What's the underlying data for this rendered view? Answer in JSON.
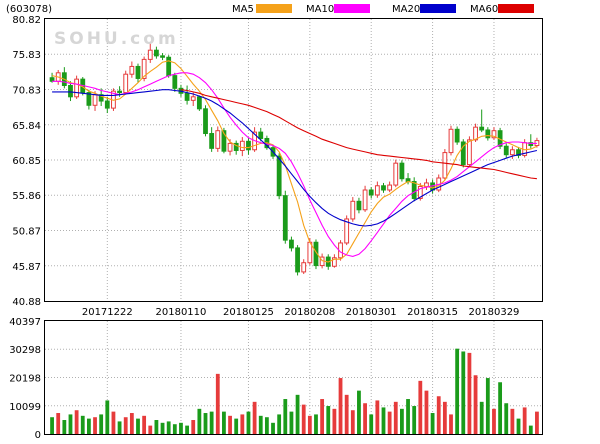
{
  "chart_data": [
    {
      "type": "candlestick",
      "code": "(603078)",
      "watermark": "SOHU.com",
      "legend": [
        {
          "label": "MA5",
          "color": "#f5a21a"
        },
        {
          "label": "MA10",
          "color": "#ff00ff"
        },
        {
          "label": "MA20",
          "color": "#0000cc"
        },
        {
          "label": "MA60",
          "color": "#dd0000"
        }
      ],
      "colors": {
        "up": "#e63b3b",
        "down": "#1a9b1a",
        "grid": "#b0b0b0"
      },
      "y_ticks": [
        "80.82",
        "75.83",
        "70.83",
        "65.84",
        "60.85",
        "55.86",
        "50.87",
        "45.87",
        "40.88"
      ],
      "ylim": [
        40.88,
        80.82
      ],
      "x_ticks": [
        {
          "label": "20171222",
          "index": 9
        },
        {
          "label": "20180110",
          "index": 21
        },
        {
          "label": "20180125",
          "index": 32
        },
        {
          "label": "20180208",
          "index": 42
        },
        {
          "label": "20180301",
          "index": 52
        },
        {
          "label": "20180315",
          "index": 62
        },
        {
          "label": "20180329",
          "index": 72
        }
      ],
      "candles": [
        [
          72.5,
          73.2,
          71.8,
          72.0
        ],
        [
          72.0,
          73.6,
          71.5,
          73.2
        ],
        [
          73.2,
          74.0,
          71.0,
          71.4
        ],
        [
          71.4,
          72.0,
          69.2,
          69.8
        ],
        [
          69.8,
          72.8,
          69.5,
          72.3
        ],
        [
          72.3,
          72.6,
          70.0,
          70.4
        ],
        [
          70.4,
          70.8,
          68.0,
          68.6
        ],
        [
          68.6,
          70.6,
          67.8,
          70.1
        ],
        [
          70.1,
          71.0,
          68.5,
          69.2
        ],
        [
          69.2,
          69.8,
          67.5,
          68.2
        ],
        [
          68.2,
          71.0,
          67.8,
          70.6
        ],
        [
          70.6,
          71.3,
          69.8,
          70.4
        ],
        [
          70.4,
          73.5,
          70.1,
          73.0
        ],
        [
          73.0,
          74.8,
          72.5,
          74.1
        ],
        [
          74.1,
          74.5,
          71.8,
          72.4
        ],
        [
          72.4,
          75.5,
          72.0,
          75.1
        ],
        [
          75.1,
          77.3,
          74.6,
          76.4
        ],
        [
          76.4,
          76.9,
          75.2,
          75.6
        ],
        [
          75.6,
          76.0,
          75.0,
          75.4
        ],
        [
          75.4,
          75.7,
          72.5,
          72.8
        ],
        [
          72.8,
          73.2,
          70.5,
          71.0
        ],
        [
          71.0,
          71.5,
          69.8,
          70.3
        ],
        [
          70.3,
          71.4,
          68.7,
          69.3
        ],
        [
          69.3,
          70.4,
          68.5,
          69.8
        ],
        [
          69.8,
          70.0,
          67.8,
          68.1
        ],
        [
          68.1,
          68.6,
          64.2,
          64.6
        ],
        [
          64.6,
          65.5,
          62.0,
          62.5
        ],
        [
          62.5,
          65.6,
          62.0,
          65.0
        ],
        [
          65.0,
          65.4,
          61.8,
          62.1
        ],
        [
          62.1,
          63.8,
          61.5,
          63.2
        ],
        [
          63.2,
          63.6,
          61.6,
          62.2
        ],
        [
          62.2,
          64.1,
          61.4,
          63.5
        ],
        [
          63.5,
          64.0,
          61.6,
          62.3
        ],
        [
          62.3,
          65.5,
          62.0,
          64.8
        ],
        [
          64.8,
          65.4,
          63.5,
          63.9
        ],
        [
          63.9,
          64.3,
          62.3,
          62.6
        ],
        [
          62.6,
          63.0,
          61.0,
          61.4
        ],
        [
          61.4,
          61.8,
          55.3,
          55.8
        ],
        [
          55.8,
          56.5,
          49.0,
          49.5
        ],
        [
          49.5,
          50.0,
          47.9,
          48.4
        ],
        [
          48.4,
          48.8,
          44.5,
          45.0
        ],
        [
          45.0,
          46.8,
          44.7,
          46.3
        ],
        [
          46.3,
          49.8,
          46.0,
          49.2
        ],
        [
          49.2,
          49.6,
          45.4,
          45.9
        ],
        [
          45.9,
          47.6,
          45.5,
          47.1
        ],
        [
          47.1,
          47.5,
          45.3,
          45.8
        ],
        [
          45.8,
          47.5,
          45.6,
          47.0
        ],
        [
          47.0,
          49.5,
          46.6,
          49.1
        ],
        [
          49.1,
          53.0,
          48.8,
          52.5
        ],
        [
          52.5,
          55.6,
          52.1,
          55.0
        ],
        [
          55.0,
          55.5,
          53.3,
          53.8
        ],
        [
          53.8,
          57.2,
          53.5,
          56.6
        ],
        [
          56.6,
          57.0,
          55.4,
          55.9
        ],
        [
          55.9,
          57.8,
          55.5,
          57.2
        ],
        [
          57.2,
          57.6,
          56.2,
          56.6
        ],
        [
          56.6,
          57.8,
          56.3,
          57.3
        ],
        [
          57.3,
          60.9,
          57.0,
          60.4
        ],
        [
          60.4,
          60.8,
          57.8,
          58.2
        ],
        [
          58.2,
          59.0,
          57.4,
          57.8
        ],
        [
          57.8,
          58.4,
          55.0,
          55.4
        ],
        [
          55.4,
          57.6,
          55.1,
          57.1
        ],
        [
          57.1,
          58.2,
          56.6,
          57.6
        ],
        [
          57.6,
          58.1,
          56.1,
          56.6
        ],
        [
          56.6,
          58.8,
          56.3,
          58.3
        ],
        [
          58.3,
          62.4,
          58.0,
          61.9
        ],
        [
          61.9,
          65.7,
          61.5,
          65.2
        ],
        [
          65.2,
          65.6,
          63.0,
          63.4
        ],
        [
          63.4,
          63.8,
          59.8,
          60.2
        ],
        [
          60.2,
          64.2,
          59.9,
          63.7
        ],
        [
          63.7,
          66.0,
          63.4,
          65.5
        ],
        [
          65.5,
          68.0,
          64.8,
          65.1
        ],
        [
          65.1,
          65.5,
          63.6,
          64.0
        ],
        [
          64.0,
          65.5,
          63.7,
          65.0
        ],
        [
          65.0,
          65.4,
          62.4,
          62.8
        ],
        [
          62.8,
          63.2,
          61.2,
          61.6
        ],
        [
          61.6,
          62.8,
          61.0,
          62.3
        ],
        [
          62.3,
          62.7,
          61.1,
          61.5
        ],
        [
          61.5,
          63.8,
          61.2,
          63.3
        ],
        [
          63.3,
          64.5,
          62.5,
          62.9
        ],
        [
          62.9,
          64.0,
          62.6,
          63.6
        ]
      ],
      "ma5": [
        72.8,
        72.6,
        72.3,
        71.8,
        71.6,
        71.2,
        70.6,
        70.3,
        69.9,
        69.6,
        69.3,
        69.5,
        70.2,
        71.0,
        71.8,
        72.7,
        73.4,
        74.0,
        74.7,
        74.9,
        74.6,
        73.8,
        72.7,
        71.6,
        70.6,
        69.4,
        67.9,
        66.4,
        64.6,
        63.4,
        62.9,
        62.6,
        62.6,
        62.9,
        63.2,
        63.3,
        63.0,
        62.0,
        60.1,
        57.5,
        54.9,
        51.6,
        49.2,
        47.8,
        46.6,
        46.4,
        46.8,
        46.8,
        47.5,
        49.0,
        50.5,
        52.0,
        53.5,
        54.7,
        55.6,
        56.0,
        56.7,
        57.3,
        57.8,
        57.6,
        57.3,
        57.1,
        56.9,
        57.2,
        58.0,
        59.6,
        61.5,
        62.8,
        63.5,
        63.8,
        64.2,
        64.3,
        64.2,
        63.8,
        63.4,
        63.0,
        62.6,
        62.3,
        62.4,
        62.8
      ],
      "ma10": [
        72.0,
        72.0,
        71.9,
        71.7,
        71.6,
        71.4,
        71.2,
        71.0,
        70.7,
        70.5,
        70.3,
        70.1,
        70.3,
        70.5,
        70.8,
        71.2,
        71.6,
        72.0,
        72.4,
        72.8,
        73.0,
        73.2,
        73.2,
        73.0,
        72.5,
        71.8,
        70.8,
        69.6,
        68.2,
        66.9,
        65.8,
        64.8,
        64.0,
        63.6,
        63.3,
        63.1,
        62.9,
        62.5,
        61.8,
        60.6,
        59.0,
        57.2,
        55.2,
        53.4,
        51.6,
        50.0,
        48.8,
        47.8,
        47.4,
        47.2,
        47.5,
        48.3,
        49.4,
        50.6,
        51.8,
        53.0,
        54.0,
        55.0,
        55.8,
        56.3,
        56.8,
        57.0,
        57.2,
        57.4,
        57.6,
        58.0,
        58.5,
        59.2,
        59.9,
        60.6,
        61.3,
        62.0,
        62.6,
        63.0,
        63.3,
        63.4,
        63.4,
        63.3,
        63.2,
        63.2
      ],
      "ma20": [
        70.5,
        70.5,
        70.5,
        70.5,
        70.4,
        70.3,
        70.2,
        70.1,
        70.0,
        70.0,
        70.0,
        70.1,
        70.2,
        70.3,
        70.4,
        70.5,
        70.6,
        70.7,
        70.8,
        70.8,
        70.7,
        70.6,
        70.4,
        70.2,
        69.9,
        69.6,
        69.2,
        68.7,
        68.1,
        67.5,
        66.8,
        66.1,
        65.3,
        64.5,
        63.7,
        62.9,
        62.0,
        61.0,
        60.0,
        58.9,
        57.8,
        56.7,
        55.7,
        54.8,
        54.0,
        53.3,
        52.8,
        52.4,
        52.1,
        51.8,
        51.6,
        51.5,
        51.6,
        51.8,
        52.2,
        52.7,
        53.3,
        53.9,
        54.5,
        55.1,
        55.6,
        56.1,
        56.6,
        57.0,
        57.4,
        57.8,
        58.2,
        58.6,
        59.0,
        59.4,
        59.8,
        60.2,
        60.5,
        60.8,
        61.1,
        61.4,
        61.6,
        61.8,
        62.0,
        62.2
      ],
      "ma60": [
        null,
        null,
        null,
        null,
        null,
        null,
        null,
        null,
        null,
        null,
        null,
        null,
        null,
        null,
        null,
        null,
        null,
        null,
        null,
        null,
        null,
        70.8,
        70.7,
        70.5,
        70.3,
        70.0,
        69.8,
        69.6,
        69.4,
        69.2,
        69.0,
        68.8,
        68.6,
        68.3,
        68.0,
        67.7,
        67.3,
        66.9,
        66.4,
        65.9,
        65.4,
        65.0,
        64.6,
        64.2,
        63.8,
        63.5,
        63.2,
        62.9,
        62.6,
        62.4,
        62.2,
        62.0,
        61.8,
        61.6,
        61.5,
        61.4,
        61.3,
        61.2,
        61.1,
        61.0,
        60.9,
        60.8,
        60.6,
        60.5,
        60.4,
        60.3,
        60.2,
        60.0,
        59.9,
        59.8,
        59.7,
        59.6,
        59.5,
        59.3,
        59.1,
        58.9,
        58.7,
        58.5,
        58.3,
        58.2
      ]
    },
    {
      "type": "bar",
      "y_ticks": [
        "40397",
        "30298",
        "20198",
        "10099",
        "0"
      ],
      "ylim": [
        0,
        40397
      ],
      "volumes": [
        6000,
        7500,
        5000,
        7000,
        8500,
        6500,
        5500,
        6000,
        7000,
        12000,
        8000,
        4500,
        6000,
        7500,
        5500,
        6500,
        3000,
        5000,
        4000,
        4500,
        3500,
        4000,
        3000,
        5000,
        9000,
        7500,
        8000,
        21500,
        8000,
        6500,
        5500,
        7000,
        8000,
        11500,
        6500,
        6000,
        4000,
        7000,
        12500,
        8000,
        14000,
        10500,
        6500,
        7000,
        12500,
        10000,
        9000,
        20000,
        14000,
        8500,
        15500,
        11000,
        7000,
        12000,
        9500,
        8000,
        11500,
        9000,
        12500,
        10000,
        19000,
        15500,
        7500,
        13500,
        11500,
        7000,
        30500,
        29500,
        29000,
        21000,
        11500,
        20000,
        9000,
        18500,
        11000,
        9000,
        5500,
        9500,
        3000,
        8000
      ]
    }
  ]
}
